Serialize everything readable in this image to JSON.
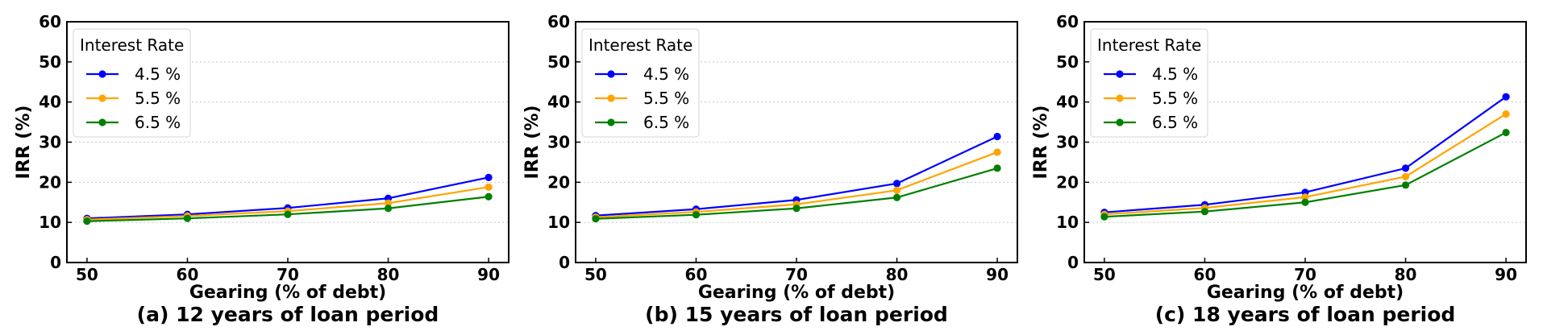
{
  "chart_data": [
    {
      "type": "line",
      "caption": "(a) 12 years of loan period",
      "xlabel": "Gearing (% of debt)",
      "ylabel": "IRR (%)",
      "x": [
        50,
        60,
        70,
        80,
        90
      ],
      "xticks": [
        "50",
        "60",
        "70",
        "80",
        "90"
      ],
      "yticks": [
        "0",
        "10",
        "20",
        "30",
        "40",
        "50",
        "60"
      ],
      "xlim": [
        48,
        92
      ],
      "ylim": [
        0,
        60
      ],
      "grid": "y-dotted",
      "legend_title": "Interest Rate",
      "legend_position": "top-left",
      "series": [
        {
          "name": "4.5 %",
          "color": "#0000ff",
          "values": [
            11.0,
            12.0,
            13.6,
            16.0,
            21.2
          ]
        },
        {
          "name": "5.5 %",
          "color": "#ffa500",
          "values": [
            10.7,
            11.6,
            12.8,
            14.8,
            18.8
          ]
        },
        {
          "name": "6.5 %",
          "color": "#008000",
          "values": [
            10.3,
            11.0,
            12.0,
            13.5,
            16.4
          ]
        }
      ]
    },
    {
      "type": "line",
      "caption": "(b) 15 years of loan period",
      "xlabel": "Gearing (% of debt)",
      "ylabel": "IRR (%)",
      "x": [
        50,
        60,
        70,
        80,
        90
      ],
      "xticks": [
        "50",
        "60",
        "70",
        "80",
        "90"
      ],
      "yticks": [
        "0",
        "10",
        "20",
        "30",
        "40",
        "50",
        "60"
      ],
      "xlim": [
        48,
        92
      ],
      "ylim": [
        0,
        60
      ],
      "grid": "y-dotted",
      "legend_title": "Interest Rate",
      "legend_position": "top-left",
      "series": [
        {
          "name": "4.5 %",
          "color": "#0000ff",
          "values": [
            11.7,
            13.3,
            15.6,
            19.7,
            31.4
          ]
        },
        {
          "name": "5.5 %",
          "color": "#ffa500",
          "values": [
            11.3,
            12.6,
            14.5,
            18.0,
            27.5
          ]
        },
        {
          "name": "6.5 %",
          "color": "#008000",
          "values": [
            10.9,
            11.9,
            13.5,
            16.2,
            23.5
          ]
        }
      ]
    },
    {
      "type": "line",
      "caption": "(c) 18 years of loan period",
      "xlabel": "Gearing (% of debt)",
      "ylabel": "IRR (%)",
      "x": [
        50,
        60,
        70,
        80,
        90
      ],
      "xticks": [
        "50",
        "60",
        "70",
        "80",
        "90"
      ],
      "yticks": [
        "0",
        "10",
        "20",
        "30",
        "40",
        "50",
        "60"
      ],
      "xlim": [
        48,
        92
      ],
      "ylim": [
        0,
        60
      ],
      "grid": "y-dotted",
      "legend_title": "Interest Rate",
      "legend_position": "top-left",
      "series": [
        {
          "name": "4.5 %",
          "color": "#0000ff",
          "values": [
            12.5,
            14.4,
            17.5,
            23.5,
            41.3
          ]
        },
        {
          "name": "5.5 %",
          "color": "#ffa500",
          "values": [
            12.0,
            13.6,
            16.3,
            21.4,
            37.0
          ]
        },
        {
          "name": "6.5 %",
          "color": "#008000",
          "values": [
            11.4,
            12.7,
            15.0,
            19.3,
            32.4
          ]
        }
      ]
    }
  ]
}
